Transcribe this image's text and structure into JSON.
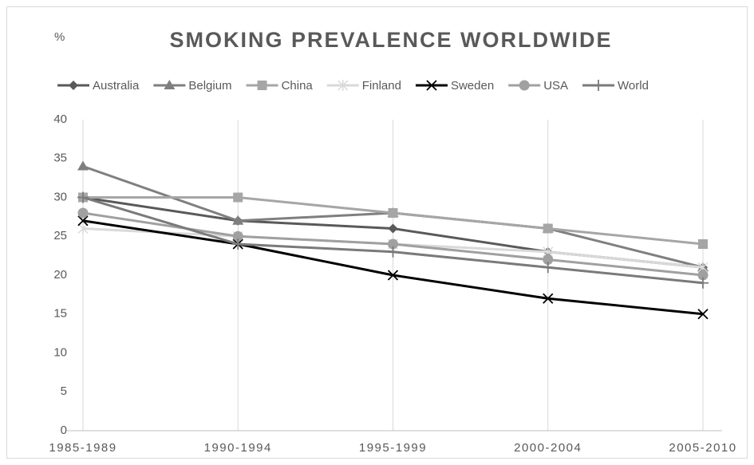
{
  "chart_data": {
    "type": "line",
    "title": "SMOKING PREVALENCE WORLDWIDE",
    "y_label": "%",
    "categories": [
      "1985-1989",
      "1990-1994",
      "1995-1999",
      "2000-2004",
      "2005-2010"
    ],
    "ylim": [
      0,
      40
    ],
    "yticks": [
      0,
      5,
      10,
      15,
      20,
      25,
      30,
      35,
      40
    ],
    "grid": "x",
    "legend": "top",
    "series": [
      {
        "name": "Australia",
        "color": "#595959",
        "marker": "diamond",
        "values": [
          30,
          27,
          26,
          23,
          21
        ]
      },
      {
        "name": "Belgium",
        "color": "#7f7f7f",
        "marker": "triangle",
        "values": [
          34,
          27,
          28,
          26,
          21
        ]
      },
      {
        "name": "China",
        "color": "#a6a6a6",
        "marker": "square",
        "values": [
          30,
          30,
          28,
          26,
          24
        ]
      },
      {
        "name": "Finland",
        "color": "#d9d9d9",
        "marker": "asterisk",
        "values": [
          26,
          25,
          24,
          23,
          21
        ]
      },
      {
        "name": "Sweden",
        "color": "#000000",
        "marker": "x",
        "values": [
          27,
          24,
          20,
          17,
          15
        ]
      },
      {
        "name": "USA",
        "color": "#a0a0a0",
        "marker": "circle",
        "values": [
          28,
          25,
          24,
          22,
          20
        ]
      },
      {
        "name": "World",
        "color": "#7a7a7a",
        "marker": "plus",
        "values": [
          30,
          24,
          23,
          21,
          19
        ]
      }
    ]
  }
}
